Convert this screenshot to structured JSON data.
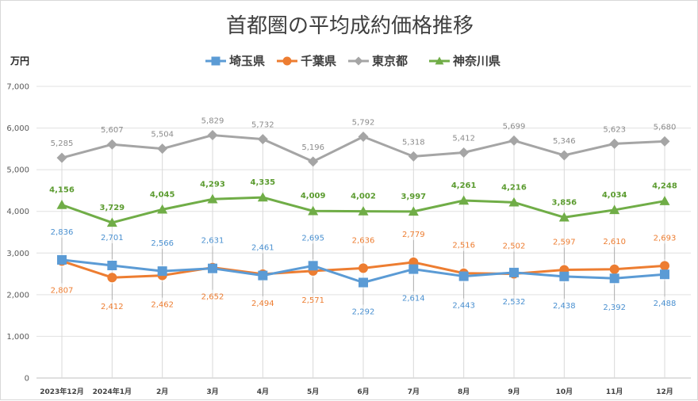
{
  "chart_data": {
    "type": "line",
    "title": "首都圏の平均成約価格推移",
    "ylabel": "万円",
    "ylim": [
      0,
      7000
    ],
    "yticks": [
      0,
      1000,
      2000,
      3000,
      4000,
      5000,
      6000,
      7000
    ],
    "ytick_labels": [
      "0",
      "1,000",
      "2,000",
      "3,000",
      "4,000",
      "5,000",
      "6,000",
      "7,000"
    ],
    "categories": [
      "2023年12月",
      "2024年1月",
      "2月",
      "3月",
      "4月",
      "5月",
      "6月",
      "7月",
      "8月",
      "9月",
      "10月",
      "11月",
      "12月"
    ],
    "grid": true,
    "legend_position": "top",
    "series": [
      {
        "name": "埼玉県",
        "color": "#5b9bd5",
        "marker": "square",
        "values": [
          2836,
          2701,
          2566,
          2631,
          2461,
          2695,
          2292,
          2614,
          2443,
          2532,
          2438,
          2392,
          2488
        ],
        "labels": [
          "2,836",
          "2,701",
          "2,566",
          "2,631",
          "2,461",
          "2,695",
          "2,292",
          "2,614",
          "2,443",
          "2,532",
          "2,438",
          "2,392",
          "2,488"
        ],
        "label_pos": [
          "above",
          "above",
          "above",
          "above",
          "above",
          "above",
          "below",
          "below",
          "below",
          "below",
          "below",
          "below",
          "below"
        ]
      },
      {
        "name": "千葉県",
        "color": "#ed7d31",
        "marker": "circle",
        "values": [
          2807,
          2412,
          2462,
          2652,
          2494,
          2571,
          2636,
          2779,
          2516,
          2502,
          2597,
          2610,
          2693
        ],
        "labels": [
          "2,807",
          "2,412",
          "2,462",
          "2,652",
          "2,494",
          "2,571",
          "2,636",
          "2,779",
          "2,516",
          "2,502",
          "2,597",
          "2,610",
          "2,693"
        ],
        "label_pos": [
          "below",
          "below",
          "below",
          "below",
          "below",
          "below",
          "above",
          "above",
          "above",
          "above",
          "above",
          "above",
          "above"
        ]
      },
      {
        "name": "東京都",
        "color": "#a5a5a5",
        "marker": "diamond",
        "values": [
          5285,
          5607,
          5504,
          5829,
          5732,
          5196,
          5792,
          5318,
          5412,
          5699,
          5346,
          5623,
          5680
        ],
        "labels": [
          "5,285",
          "5,607",
          "5,504",
          "5,829",
          "5,732",
          "5,196",
          "5,792",
          "5,318",
          "5,412",
          "5,699",
          "5,346",
          "5,623",
          "5,680"
        ],
        "label_pos": [
          "above",
          "above",
          "above",
          "above",
          "above",
          "above",
          "above",
          "above",
          "above",
          "above",
          "above",
          "above",
          "above"
        ]
      },
      {
        "name": "神奈川県",
        "color": "#70ad47",
        "marker": "triangle",
        "values": [
          4156,
          3729,
          4045,
          4293,
          4335,
          4009,
          4002,
          3997,
          4261,
          4216,
          3856,
          4034,
          4248
        ],
        "labels": [
          "4,156",
          "3,729",
          "4,045",
          "4,293",
          "4,335",
          "4,009",
          "4,002",
          "3,997",
          "4,261",
          "4,216",
          "3,856",
          "4,034",
          "4,248"
        ],
        "label_pos": [
          "above",
          "above",
          "above",
          "above",
          "above",
          "above",
          "above",
          "above",
          "above",
          "above",
          "above",
          "above",
          "above"
        ]
      }
    ]
  }
}
